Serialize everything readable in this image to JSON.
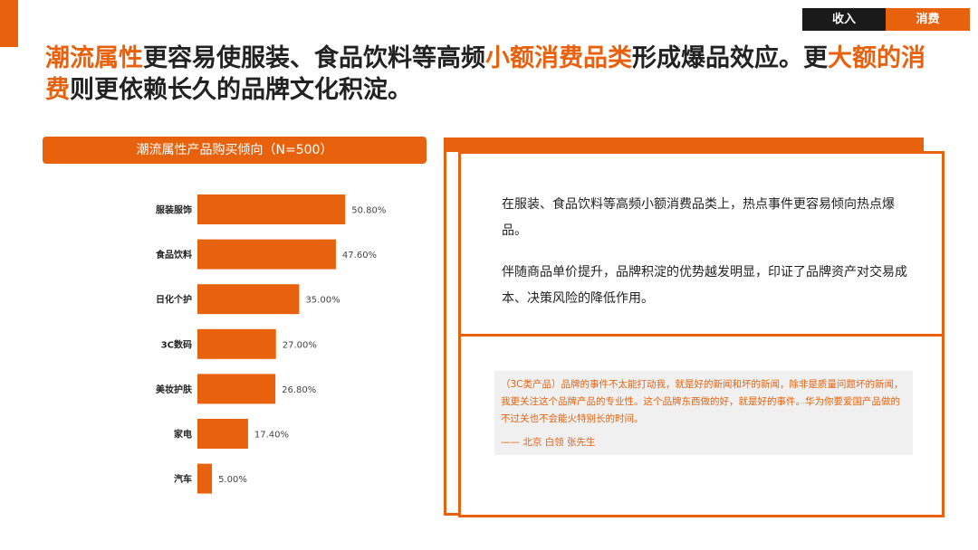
{
  "tabs": {
    "income": "收入",
    "consume": "消费"
  },
  "headline": {
    "seg1": "潮流属性",
    "seg2": "更容易使服装、食品饮料等高频",
    "seg3": "小额消费品类",
    "seg4": "形成爆品效应。更",
    "seg5": "大额的消费",
    "seg6": "则更依赖长久的品牌文化积淀。"
  },
  "chart_data": {
    "type": "bar",
    "orientation": "horizontal",
    "title": "潮流属性产品购买倾向（N=500）",
    "categories": [
      "服装服饰",
      "食品饮料",
      "日化个护",
      "3C数码",
      "美妆护肤",
      "家电",
      "汽车"
    ],
    "values": [
      50.8,
      47.6,
      35.0,
      27.0,
      26.8,
      17.4,
      5.0
    ],
    "value_labels": [
      "50.80%",
      "47.60%",
      "35.00%",
      "27.00%",
      "26.80%",
      "17.40%",
      "5.00%"
    ],
    "unit": "%",
    "xlim": [
      0,
      60
    ],
    "bar_color": "#e8620e",
    "grid": false,
    "legend": "none"
  },
  "card": {
    "para1": "在服装、食品饮料等高频小额消费品类上，热点事件更容易倾向热点爆品。",
    "para2": "伴随商品单价提升，品牌积淀的优势越发明显，印证了品牌资产对交易成本、决策风险的降低作用。",
    "quote": "（3C类产品）品牌的事件不太能打动我，就是好的新闻和坏的新闻，除非是质量问题坏的新闻，我更关注这个品牌产品的专业性。这个品牌东西做的好，就是好的事件。华为你要爱国产品做的不过关也不会能火特别长的时间。",
    "quote_source": "—— 北京 白领 张先生"
  },
  "colors": {
    "accent": "#e8620e",
    "dark": "#1a1a1a",
    "quote_bg": "#f0f0f0"
  }
}
